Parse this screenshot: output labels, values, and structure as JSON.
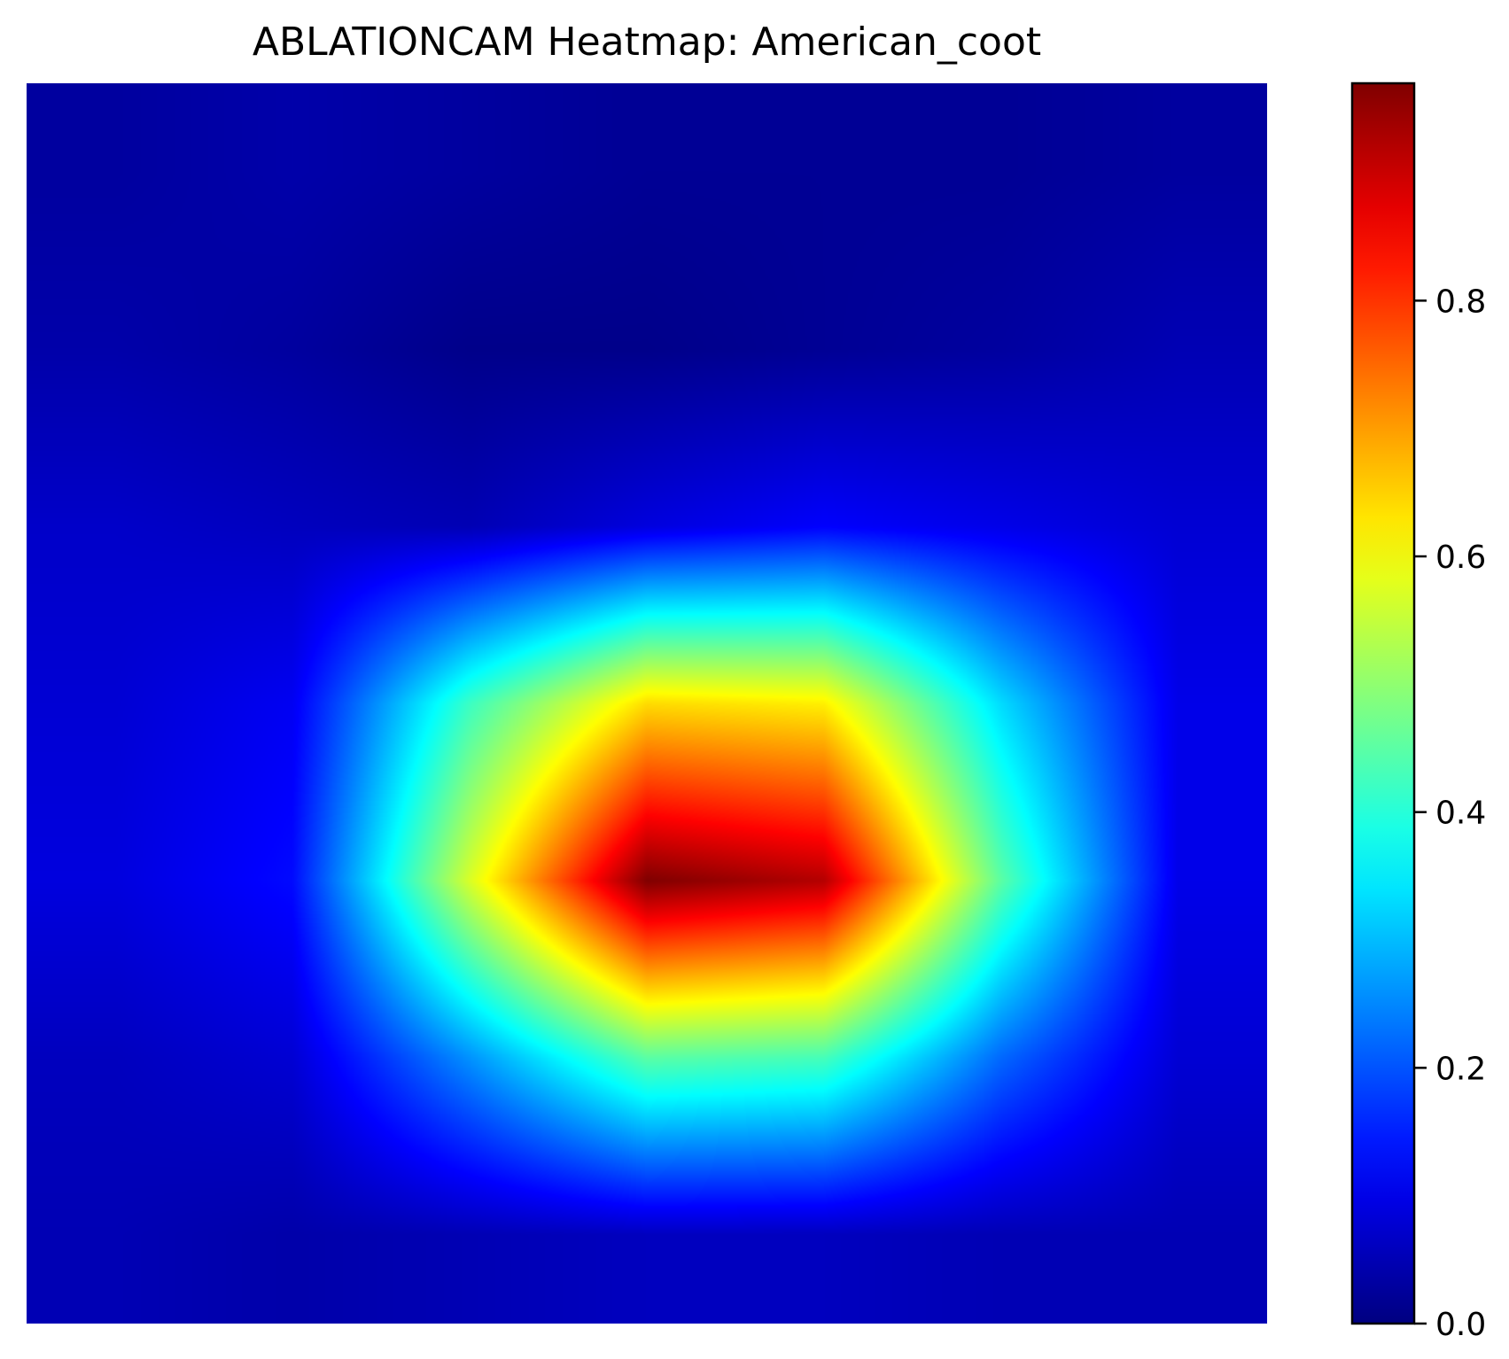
{
  "chart_data": {
    "type": "heatmap",
    "title": "ABLATIONCAM Heatmap: American_coot",
    "colormap": "jet",
    "vmin": 0.0,
    "vmax": 0.97,
    "grid": false,
    "axes_visible": false,
    "colorbar": {
      "placement": "right",
      "ticks": [
        {
          "value": 0.0,
          "label": "0.0"
        },
        {
          "value": 0.2,
          "label": "0.2"
        },
        {
          "value": 0.4,
          "label": "0.4"
        },
        {
          "value": 0.6,
          "label": "0.6"
        },
        {
          "value": 0.8,
          "label": "0.8"
        }
      ]
    },
    "grid_rows": 7,
    "grid_cols": 7,
    "values": [
      [
        0.03,
        0.04,
        0.03,
        0.02,
        0.02,
        0.02,
        0.03
      ],
      [
        0.04,
        0.03,
        0.01,
        0.01,
        0.02,
        0.03,
        0.05
      ],
      [
        0.07,
        0.06,
        0.05,
        0.09,
        0.12,
        0.1,
        0.08
      ],
      [
        0.08,
        0.11,
        0.42,
        0.64,
        0.62,
        0.33,
        0.1
      ],
      [
        0.09,
        0.13,
        0.57,
        0.97,
        0.92,
        0.45,
        0.1
      ],
      [
        0.06,
        0.08,
        0.26,
        0.45,
        0.43,
        0.22,
        0.08
      ],
      [
        0.05,
        0.04,
        0.05,
        0.06,
        0.06,
        0.05,
        0.05
      ]
    ]
  }
}
